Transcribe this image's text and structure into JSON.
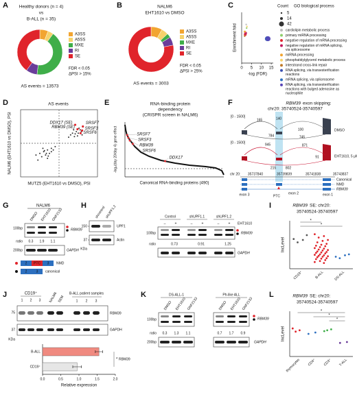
{
  "a": {
    "letter": "A",
    "type": "pie",
    "heading": [
      "Healthy donors (n = 4)",
      "vs",
      "B-ALL (n = 35)"
    ],
    "categories": [
      "A3SS",
      "A5SS",
      "MXE",
      "RI",
      "SE"
    ],
    "colors": [
      "#f2a531",
      "#f6d26b",
      "#3fae49",
      "#6a3d9a",
      "#e0242b"
    ],
    "values": [
      6,
      4,
      42,
      8,
      40
    ],
    "notes": [
      "FDR < 0.05",
      "ΔPSI > 15%"
    ],
    "footer": "AS events = 13573"
  },
  "b": {
    "letter": "B",
    "type": "pie",
    "heading": [
      "NALM6",
      "EHT1610 vs DMSO"
    ],
    "categories": [
      "A3SS",
      "A5SS",
      "MXE",
      "RI",
      "SE"
    ],
    "colors": [
      "#f2a531",
      "#f6d26b",
      "#3fae49",
      "#6a3d9a",
      "#e0242b"
    ],
    "values": [
      8,
      5,
      3,
      6,
      78
    ],
    "notes": [
      "FDR < 0.05",
      "ΔPSI > 25%"
    ],
    "footer": "AS events = 3003"
  },
  "c": {
    "letter": "C",
    "type": "scatter",
    "ylabel": "Enrichment fold",
    "xlabel": "-log (FDR)",
    "xlim": [
      0,
      16
    ],
    "xticks": [
      0,
      5,
      10,
      15
    ],
    "ylim": [
      0,
      10
    ],
    "size_title": "Count",
    "legend_title": "GO biological process",
    "size_legend": [
      5,
      14,
      42
    ],
    "processes": [
      {
        "name": [
          "cardiolipin metabolic process"
        ],
        "color": "#bdbdbd",
        "label_color": "#111"
      },
      {
        "name": [
          "primary miRNA processing"
        ],
        "color": "#8fce6b",
        "label_color": "#111"
      },
      {
        "name": [
          "negative regulation of mRNA processing"
        ],
        "color": "#e0242b",
        "label_color": "#d0202a"
      },
      {
        "name": [
          "negative regulation of mRNA splicing,",
          "via spliceosome"
        ],
        "color": "#c2185b",
        "label_color": "#d0202a"
      },
      {
        "name": [
          "miRNA processing"
        ],
        "color": "#f2a531",
        "label_color": "#111"
      },
      {
        "name": [
          "phosphatidylglycerol metabolic process"
        ],
        "color": "#f6d26b",
        "label_color": "#111"
      },
      {
        "name": [
          "interstrand cross-link repair"
        ],
        "color": "#c07a2a",
        "label_color": "#111"
      },
      {
        "name": [
          "RNA splicing, via transesterification",
          "reactions"
        ],
        "color": "#3a4fb0",
        "label_color": "#2a3fa8"
      },
      {
        "name": [
          "mRNA splicing, via spliceosome"
        ],
        "color": "#2c6fbf",
        "label_color": "#2a3fa8"
      },
      {
        "name": [
          "RNA splicing, via transesterification",
          "reactions with bulged adenosine as",
          "nucleophile"
        ],
        "color": "#5a46b8",
        "label_color": "#2a3fa8"
      }
    ],
    "x": [
      2.3,
      2.5,
      1.8,
      2.0,
      1.6,
      2.7,
      1.5,
      13.0,
      13.2,
      13.4
    ],
    "y": [
      7.6,
      6.9,
      5.6,
      5.9,
      6.2,
      7.2,
      5.3,
      4.8,
      4.8,
      4.8
    ],
    "size": [
      5,
      5,
      14,
      14,
      8,
      5,
      5,
      42,
      42,
      42
    ]
  },
  "d": {
    "letter": "D",
    "type": "scatter",
    "title": "AS events",
    "xlabel": "MUTZ5 (EHT1610 vs DMSO), PSI",
    "ylabel": "NALM6 (EHT1610 vs DMSO), PSI",
    "xlim": [
      -1,
      1
    ],
    "ylim": [
      -1,
      1
    ],
    "x": [
      -0.6,
      -0.5,
      -0.45,
      -0.4,
      -0.35,
      -0.3,
      -0.3,
      -0.25,
      -0.2,
      -0.2,
      -0.15,
      -0.1,
      -0.55,
      -0.42,
      -0.33,
      0.3,
      0.35,
      0.4,
      0.45,
      0.5,
      0.55,
      0.6,
      0.38,
      0.48,
      0.58,
      0.25,
      0.42,
      -0.38,
      -0.28,
      0.52
    ],
    "y": [
      -0.35,
      -0.3,
      -0.4,
      -0.25,
      -0.35,
      -0.2,
      -0.45,
      -0.3,
      -0.25,
      -0.15,
      -0.2,
      -0.1,
      -0.5,
      -0.15,
      -0.3,
      0.25,
      0.3,
      0.2,
      0.35,
      0.3,
      0.4,
      0.25,
      0.4,
      0.22,
      0.35,
      0.18,
      0.28,
      -0.22,
      -0.38,
      0.45
    ],
    "highlights": [
      {
        "label": "DDX17 (SE)",
        "x": 0.42,
        "y": 0.55
      },
      {
        "label": "RBM39 (SE)",
        "x": 0.48,
        "y": 0.42
      },
      {
        "label": "SRSF7",
        "x": 0.62,
        "y": 0.5
      },
      {
        "label": "SRSF3",
        "x": 0.6,
        "y": 0.38
      },
      {
        "label": "SRSF6",
        "x": 0.56,
        "y": 0.3
      }
    ]
  },
  "e": {
    "letter": "E",
    "type": "line",
    "title": [
      "RNA-binding protein",
      "dependency"
    ],
    "subtitle": "(CRISPR screen in NALM6)",
    "ylabel": "-log₂(day 20/day 4) gene effect",
    "xlabel": "Canonical RNA-binding proteins (490)",
    "xlim": [
      1,
      490
    ],
    "ylim": [
      -0.6,
      3.4
    ],
    "x": [
      1,
      5,
      10,
      20,
      35,
      50,
      80,
      120,
      180,
      250,
      320,
      400,
      450,
      480,
      490
    ],
    "y": [
      3.2,
      2.8,
      2.5,
      2.2,
      1.9,
      1.6,
      1.2,
      0.9,
      0.6,
      0.4,
      0.25,
      0.15,
      0.05,
      -0.15,
      -0.45
    ],
    "highlights": [
      {
        "label": "SRSF7",
        "x": 12,
        "y": 2.45
      },
      {
        "label": "SRSF3",
        "x": 18,
        "y": 2.25
      },
      {
        "label": "RBM39",
        "x": 25,
        "y": 2.05
      },
      {
        "label": "SRSF6",
        "x": 40,
        "y": 1.8
      },
      {
        "label": "DDX17",
        "x": 200,
        "y": 0.55
      }
    ]
  },
  "f": {
    "letter": "F",
    "title_gene": "RBM39",
    "title_rest": "exon skipping:",
    "region": "chr20: 35740524-35740597",
    "tracks": [
      {
        "scale": "[0 - 1500]",
        "name": "DMSO",
        "junctions": [
          165,
          140,
          784,
          100,
          745
        ]
      },
      {
        "scale": "[0 - 1500]",
        "name": "EHT1610, 5 μM",
        "junctions": [
          945,
          871,
          91,
          215,
          802
        ]
      }
    ],
    "coord_label": "chr 20:",
    "coords": [
      35737840,
      35739839,
      35741838,
      35743837
    ],
    "exons": [
      "exon 3",
      "exon 2",
      "exon 1"
    ],
    "ptc": "PTC",
    "isoforms": [
      "Canonical",
      "NMD"
    ],
    "gene": "RBM39"
  },
  "g": {
    "letter": "G",
    "cell": "NALM6",
    "lanes": [
      "DMSO",
      "EHT1610",
      "GNF2133"
    ],
    "size_top": "100bp",
    "size_bottom": "200bp",
    "gene": "RBM39",
    "control": "GAPDH",
    "ratio_label": "ratio",
    "ratios": [
      0.3,
      1.9,
      1.1
    ],
    "nmd_exons": [
      "2",
      "PTC",
      "3"
    ],
    "canonical_exons": [
      "2",
      "3"
    ],
    "nmd": "NMD",
    "canonical": "canonical"
  },
  "h": {
    "letter": "H",
    "wb_lanes": [
      "shcontrol",
      "shUPF1.2"
    ],
    "wb_targets": [
      "UPF1",
      "Actin"
    ],
    "wb_sizes": [
      150,
      37
    ],
    "unit": "KDa",
    "groups": [
      "Control",
      "shUPF1.1",
      "shUPF1.2"
    ],
    "signs": [
      "–",
      "+",
      "–",
      "+",
      "–",
      "+"
    ],
    "drug": "EHT1610",
    "size_top": "100bp",
    "gene": "RBM39",
    "ratio_label": "ratio",
    "ratios": [
      0.73,
      0.91,
      1.25
    ],
    "control": "GAPDH"
  },
  "i": {
    "letter": "I",
    "type": "dot",
    "title_gene": "RBM39",
    "title_rest": "SE: chr20:",
    "region": "35740524-35740597",
    "ylabel": "IncLevel",
    "ylim": [
      0,
      1
    ],
    "groups": [
      {
        "name": "CD19⁺",
        "color": "#555",
        "values": [
          0.62,
          0.6,
          0.55,
          0.7
        ]
      },
      {
        "name": "B-ALL",
        "color": "#e0242b",
        "values": [
          0.72,
          0.68,
          0.65,
          0.6,
          0.58,
          0.55,
          0.52,
          0.5,
          0.48,
          0.47,
          0.45,
          0.43,
          0.42,
          0.4,
          0.39,
          0.38,
          0.36,
          0.35,
          0.34,
          0.33,
          0.32,
          0.3,
          0.29,
          0.28,
          0.27,
          0.26,
          0.25,
          0.24,
          0.22,
          0.21,
          0.2,
          0.18,
          0.16,
          0.14,
          0.12
        ]
      },
      {
        "name": "DS-ALL",
        "color": "#2c6fbf",
        "values": [
          0.25,
          0.28,
          0.22,
          0.3
        ]
      }
    ],
    "stars": [
      "*",
      "*"
    ]
  },
  "j": {
    "letter": "J",
    "type": "bar",
    "normal": "CD19⁺",
    "normal_lanes": [
      "1",
      "2",
      "3"
    ],
    "lines": [
      "NALM6",
      "SEM"
    ],
    "patients": "B-ALL patient samples",
    "patient_lanes": [
      "1",
      "2",
      "3"
    ],
    "wb_sizes": [
      75,
      37
    ],
    "unit": "KDa",
    "targets": [
      "RBM39",
      "GAPDH"
    ],
    "categories": [
      "B-ALL",
      "CD19⁺"
    ],
    "values": [
      1.55,
      0.95
    ],
    "errors": [
      0.1,
      0.12
    ],
    "colors": [
      "#f08a80",
      "#e6e6e6"
    ],
    "xlim": [
      0,
      2
    ],
    "xticks": [
      {
        "value": 0,
        "label": "0.0"
      },
      {
        "value": 0.5,
        "label": "0.5"
      },
      {
        "value": 1,
        "label": "1.0"
      },
      {
        "value": 1.5,
        "label": "1.5"
      },
      {
        "value": 2,
        "label": "2.0"
      }
    ],
    "xlabel": "Relative expression",
    "star": "*",
    "gene": "RBM39"
  },
  "k": {
    "letter": "K",
    "samples": [
      "DS-ALL-1",
      "Ph-like ALL"
    ],
    "lanes": [
      "DMSO",
      "EHT1610",
      "GNF2133"
    ],
    "size_top": "100bp",
    "size_bottom": "200bp",
    "gene": "RBM39",
    "control": "GAPDH",
    "ratio_label": "ratio",
    "ratios": [
      [
        0.3,
        1.3,
        1.1
      ],
      [
        0.7,
        1.7,
        0.9
      ]
    ]
  },
  "l": {
    "letter": "L",
    "type": "dot",
    "title_gene": "RBM39",
    "title_rest": "SE: chr20:",
    "region": "35740524-35740597",
    "ylabel": "IncLevel",
    "ylim": [
      0,
      1
    ],
    "groups": [
      {
        "name": "thymocytes",
        "color": "#e0242b",
        "values": [
          0.62,
          0.58,
          0.55
        ]
      },
      {
        "name": "CD4⁺",
        "color": "#2c6fbf",
        "values": [
          0.5,
          0.53
        ]
      },
      {
        "name": "CD3⁺",
        "color": "#3fae49",
        "values": [
          0.56,
          0.6,
          0.58
        ]
      },
      {
        "name": "T-ALL",
        "color": "#6a3d9a",
        "values": [
          0.3,
          0.32
        ]
      }
    ],
    "stars": [
      "*",
      "*",
      "*"
    ]
  }
}
